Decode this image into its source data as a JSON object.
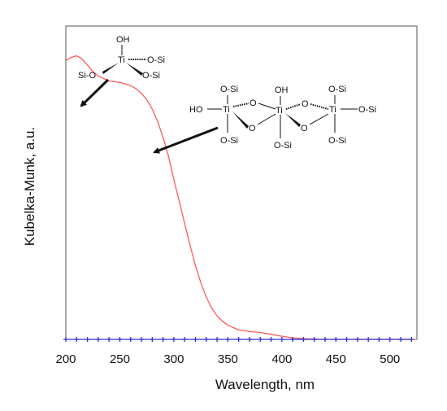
{
  "chart_data": {
    "type": "line",
    "xlabel": "Wavelength, nm",
    "ylabel": "Kubelka-Munk, a.u.",
    "xlim": [
      200,
      525
    ],
    "ylim": [
      0,
      1
    ],
    "x_ticks": [
      200,
      250,
      300,
      350,
      400,
      450,
      500
    ],
    "y_ticks_shown": false,
    "grid": false,
    "series": [
      {
        "color": "#ff5a5a",
        "points": [
          [
            200,
            0.89
          ],
          [
            205,
            0.9
          ],
          [
            210,
            0.905
          ],
          [
            215,
            0.895
          ],
          [
            220,
            0.875
          ],
          [
            225,
            0.855
          ],
          [
            230,
            0.84
          ],
          [
            240,
            0.825
          ],
          [
            250,
            0.82
          ],
          [
            255,
            0.815
          ],
          [
            260,
            0.81
          ],
          [
            265,
            0.8
          ],
          [
            270,
            0.785
          ],
          [
            275,
            0.765
          ],
          [
            280,
            0.735
          ],
          [
            285,
            0.695
          ],
          [
            290,
            0.645
          ],
          [
            295,
            0.585
          ],
          [
            300,
            0.51
          ],
          [
            305,
            0.44
          ],
          [
            310,
            0.37
          ],
          [
            315,
            0.3
          ],
          [
            320,
            0.235
          ],
          [
            325,
            0.18
          ],
          [
            330,
            0.135
          ],
          [
            335,
            0.1
          ],
          [
            340,
            0.075
          ],
          [
            345,
            0.058
          ],
          [
            350,
            0.045
          ],
          [
            360,
            0.03
          ],
          [
            370,
            0.025
          ],
          [
            380,
            0.022
          ],
          [
            390,
            0.016
          ],
          [
            400,
            0.01
          ],
          [
            410,
            0.005
          ],
          [
            420,
            0.002
          ],
          [
            440,
            0.0
          ],
          [
            525,
            0.0
          ]
        ]
      },
      {
        "color": "#3333cc",
        "marker": "plus",
        "points": [
          [
            200,
            0
          ],
          [
            210,
            0
          ],
          [
            220,
            0
          ],
          [
            230,
            0
          ],
          [
            240,
            0
          ],
          [
            250,
            0
          ],
          [
            260,
            0
          ],
          [
            270,
            0
          ],
          [
            280,
            0
          ],
          [
            290,
            0
          ],
          [
            300,
            0
          ],
          [
            310,
            0
          ],
          [
            320,
            0
          ],
          [
            330,
            0
          ],
          [
            340,
            0
          ],
          [
            350,
            0
          ],
          [
            360,
            0
          ],
          [
            370,
            0
          ],
          [
            380,
            0
          ],
          [
            390,
            0
          ],
          [
            400,
            0
          ],
          [
            410,
            0
          ],
          [
            420,
            0
          ],
          [
            430,
            0
          ],
          [
            440,
            0
          ],
          [
            450,
            0
          ],
          [
            460,
            0
          ],
          [
            470,
            0
          ],
          [
            480,
            0
          ],
          [
            490,
            0
          ],
          [
            500,
            0
          ],
          [
            510,
            0
          ],
          [
            520,
            0
          ]
        ]
      }
    ],
    "annotations": {
      "isolated": {
        "oh": "OH",
        "ti": "Ti",
        "osi_right": "O-Si",
        "osi_left": "Si-O",
        "osi_bottom": "O-Si",
        "points_to_x": 210
      },
      "oligomer": {
        "ho": "HO",
        "ti": "Ti",
        "o": "O",
        "oh": "OH",
        "osi": "O-Si",
        "points_to_x": 275
      }
    }
  }
}
